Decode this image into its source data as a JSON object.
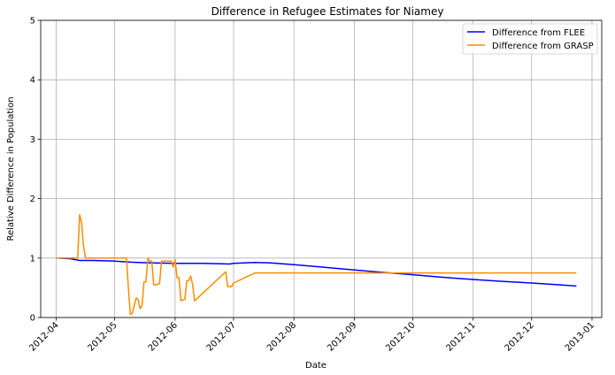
{
  "chart_data": {
    "type": "line",
    "title": "Difference in Refugee Estimates for Niamey",
    "xlabel": "Date",
    "ylabel": "Relative Difference in Population",
    "xlim": [
      "2012-03-24",
      "2013-01-06"
    ],
    "ylim": [
      0,
      5
    ],
    "yticks": [
      0,
      1,
      2,
      3,
      4,
      5
    ],
    "xticks": [
      "2012-04",
      "2012-05",
      "2012-06",
      "2012-07",
      "2012-08",
      "2012-09",
      "2012-10",
      "2012-11",
      "2012-12",
      "2013-01"
    ],
    "grid": true,
    "legend_position": "top-right",
    "series": [
      {
        "name": "Difference from FLEE",
        "color": "#0000ff",
        "x": [
          "2012-04-01",
          "2012-04-08",
          "2012-04-13",
          "2012-04-20",
          "2012-05-01",
          "2012-05-10",
          "2012-05-20",
          "2012-06-01",
          "2012-06-15",
          "2012-06-29",
          "2012-07-01",
          "2012-07-12",
          "2012-07-20",
          "2012-08-01",
          "2012-08-15",
          "2012-09-01",
          "2012-09-15",
          "2012-10-01",
          "2012-10-15",
          "2012-11-01",
          "2012-11-15",
          "2012-12-01",
          "2012-12-15",
          "2012-12-24"
        ],
        "y": [
          1.0,
          0.99,
          0.96,
          0.96,
          0.95,
          0.93,
          0.92,
          0.91,
          0.91,
          0.9,
          0.91,
          0.925,
          0.92,
          0.89,
          0.85,
          0.8,
          0.76,
          0.72,
          0.68,
          0.64,
          0.61,
          0.58,
          0.55,
          0.53
        ]
      },
      {
        "name": "Difference from GRASP",
        "color": "#ff8c00",
        "x": [
          "2012-04-01",
          "2012-04-12",
          "2012-04-13",
          "2012-04-14",
          "2012-04-15",
          "2012-04-16",
          "2012-05-07",
          "2012-05-08",
          "2012-05-09",
          "2012-05-10",
          "2012-05-11",
          "2012-05-12",
          "2012-05-13",
          "2012-05-14",
          "2012-05-15",
          "2012-05-16",
          "2012-05-17",
          "2012-05-18",
          "2012-05-19",
          "2012-05-20",
          "2012-05-21",
          "2012-05-22",
          "2012-05-23",
          "2012-05-24",
          "2012-05-25",
          "2012-05-30",
          "2012-05-31",
          "2012-06-01",
          "2012-06-02",
          "2012-06-03",
          "2012-06-04",
          "2012-06-05",
          "2012-06-06",
          "2012-06-07",
          "2012-06-08",
          "2012-06-09",
          "2012-06-10",
          "2012-06-11",
          "2012-06-27",
          "2012-06-28",
          "2012-06-30",
          "2012-07-01",
          "2012-07-12",
          "2012-12-24"
        ],
        "y": [
          1.0,
          1.0,
          1.73,
          1.6,
          1.2,
          1.0,
          1.0,
          0.5,
          0.05,
          0.07,
          0.2,
          0.33,
          0.3,
          0.15,
          0.2,
          0.6,
          0.6,
          1.0,
          0.95,
          0.95,
          0.55,
          0.55,
          0.56,
          0.57,
          0.95,
          0.95,
          0.85,
          0.97,
          0.67,
          0.67,
          0.28,
          0.3,
          0.3,
          0.62,
          0.62,
          0.7,
          0.55,
          0.28,
          0.77,
          0.52,
          0.52,
          0.58,
          0.75,
          0.75
        ]
      }
    ]
  }
}
